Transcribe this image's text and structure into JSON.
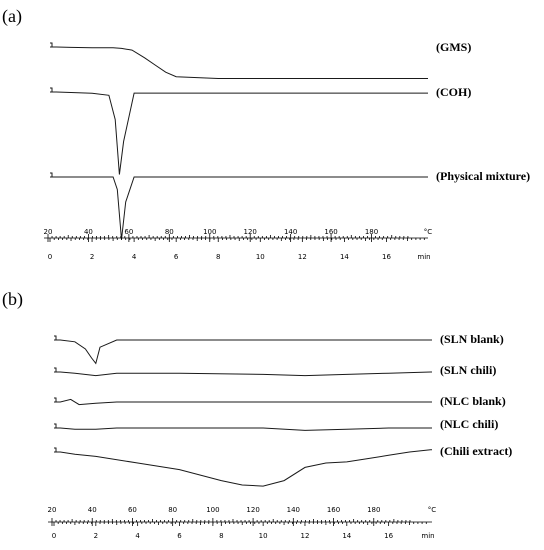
{
  "chart_data": [
    {
      "type": "line",
      "panel_label": "(a)",
      "series": [
        {
          "name": "(GMS)",
          "x": [
            0,
            0.3,
            1,
            2,
            3,
            3.4,
            3.9,
            4.5,
            5,
            5.5,
            6,
            8,
            10,
            12,
            14,
            16,
            18
          ],
          "y": [
            0,
            0,
            -0.4,
            -0.8,
            -0.9,
            -1.5,
            -3.5,
            -12,
            -20,
            -28,
            -33,
            -35,
            -35,
            -35,
            -35,
            -35,
            -35
          ],
          "ylabel": "(GMS)"
        },
        {
          "name": "(COH)",
          "x": [
            0,
            0.3,
            1,
            2,
            2.8,
            3.1,
            3.3,
            3.5,
            4,
            6,
            8,
            10,
            12,
            14,
            16,
            18
          ],
          "y": [
            0,
            0,
            -0.5,
            -1.2,
            -3,
            -25,
            -75,
            -45,
            -1,
            -1,
            -1,
            -1,
            -1,
            -1,
            -1,
            -1
          ],
          "ylabel": "(COH)"
        },
        {
          "name": "(Physical mixture)",
          "x": [
            0,
            0.3,
            1,
            2,
            3,
            3.2,
            3.4,
            3.6,
            4,
            6,
            8,
            10,
            12,
            14,
            16,
            18
          ],
          "y": [
            0,
            0,
            0,
            0,
            0,
            -10,
            -50,
            -20,
            0,
            0,
            0,
            0,
            0,
            0,
            0,
            0
          ],
          "ylabel": "(Physical mixture)"
        }
      ],
      "temp_ticks": [
        "20",
        "40",
        "60",
        "80",
        "100",
        "120",
        "140",
        "160",
        "180"
      ],
      "time_ticks": [
        "0",
        "2",
        "4",
        "6",
        "8",
        "10",
        "12",
        "14",
        "16"
      ],
      "temp_unit": "°C",
      "time_unit": "min",
      "xlim": [
        0,
        17.5
      ]
    },
    {
      "type": "line",
      "panel_label": "(b)",
      "series": [
        {
          "name": "(SLN blank)",
          "x": [
            0,
            0.3,
            1,
            1.5,
            1.8,
            2,
            2.2,
            3,
            6,
            10,
            14,
            18
          ],
          "y": [
            0,
            0,
            -2,
            -10,
            -20,
            -26,
            -8,
            0,
            0,
            0,
            0,
            0
          ],
          "ylabel": "(SLN blank)"
        },
        {
          "name": "(SLN chili)",
          "x": [
            0,
            0.3,
            1,
            2,
            3,
            6,
            10,
            12,
            14,
            16,
            18
          ],
          "y": [
            0,
            0,
            -1,
            -3,
            -1,
            -1,
            -2,
            -3,
            -2,
            -1,
            0
          ],
          "ylabel": "(SLN chili)"
        },
        {
          "name": "(NLC blank)",
          "x": [
            0,
            0.3,
            0.8,
            1.2,
            2,
            3,
            6,
            10,
            14,
            18
          ],
          "y": [
            0,
            0,
            2,
            -2,
            -1,
            0,
            0,
            0,
            0,
            0
          ],
          "ylabel": "(NLC blank)"
        },
        {
          "name": "(NLC chili)",
          "x": [
            0,
            0.3,
            1,
            2,
            3,
            6,
            10,
            12,
            14,
            16,
            18
          ],
          "y": [
            0,
            0,
            -1,
            -1,
            0,
            0,
            0,
            -2,
            -1,
            0,
            0
          ],
          "ylabel": "(NLC chili)"
        },
        {
          "name": "(Chili extract)",
          "x": [
            0,
            0.3,
            1,
            2,
            4,
            6,
            8,
            9,
            10,
            11,
            12,
            13,
            14,
            15,
            16,
            17,
            18
          ],
          "y": [
            0,
            0,
            -2,
            -4,
            -10,
            -16,
            -26,
            -30,
            -31,
            -26,
            -14,
            -10,
            -9,
            -6,
            -3,
            0,
            2
          ],
          "ylabel": "(Chili extract)"
        }
      ],
      "temp_ticks": [
        "20",
        "40",
        "60",
        "80",
        "100",
        "120",
        "140",
        "160",
        "180"
      ],
      "time_ticks": [
        "0",
        "2",
        "4",
        "6",
        "8",
        "10",
        "12",
        "14",
        "16"
      ],
      "temp_unit": "°C",
      "time_unit": "min",
      "xlim": [
        0,
        17.5
      ]
    }
  ]
}
